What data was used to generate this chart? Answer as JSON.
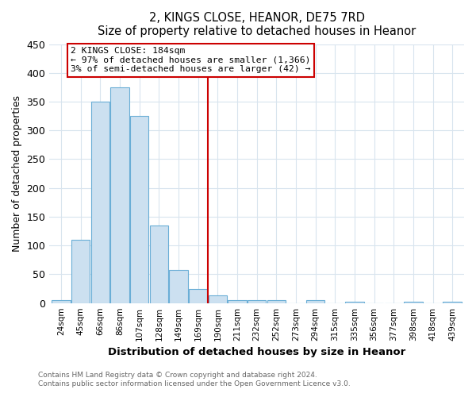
{
  "title": "2, KINGS CLOSE, HEANOR, DE75 7RD",
  "subtitle": "Size of property relative to detached houses in Heanor",
  "xlabel": "Distribution of detached houses by size in Heanor",
  "ylabel": "Number of detached properties",
  "bar_labels": [
    "24sqm",
    "45sqm",
    "66sqm",
    "86sqm",
    "107sqm",
    "128sqm",
    "149sqm",
    "169sqm",
    "190sqm",
    "211sqm",
    "232sqm",
    "252sqm",
    "273sqm",
    "294sqm",
    "315sqm",
    "335sqm",
    "356sqm",
    "377sqm",
    "398sqm",
    "418sqm",
    "439sqm"
  ],
  "bar_values": [
    5,
    110,
    350,
    375,
    325,
    135,
    57,
    25,
    13,
    5,
    5,
    5,
    0,
    5,
    0,
    3,
    0,
    0,
    2,
    0,
    2
  ],
  "bar_color": "#cce0f0",
  "bar_edge_color": "#6aaed6",
  "vline_x": 7.5,
  "vline_color": "#cc0000",
  "annotation_title": "2 KINGS CLOSE: 184sqm",
  "annotation_line1": "← 97% of detached houses are smaller (1,366)",
  "annotation_line2": "3% of semi-detached houses are larger (42) →",
  "annotation_box_edge_color": "#cc0000",
  "ylim": [
    0,
    450
  ],
  "yticks": [
    0,
    50,
    100,
    150,
    200,
    250,
    300,
    350,
    400,
    450
  ],
  "footer1": "Contains HM Land Registry data © Crown copyright and database right 2024.",
  "footer2": "Contains public sector information licensed under the Open Government Licence v3.0.",
  "background_color": "#ffffff",
  "plot_bg_color": "#ffffff",
  "grid_color": "#d8e4ee"
}
